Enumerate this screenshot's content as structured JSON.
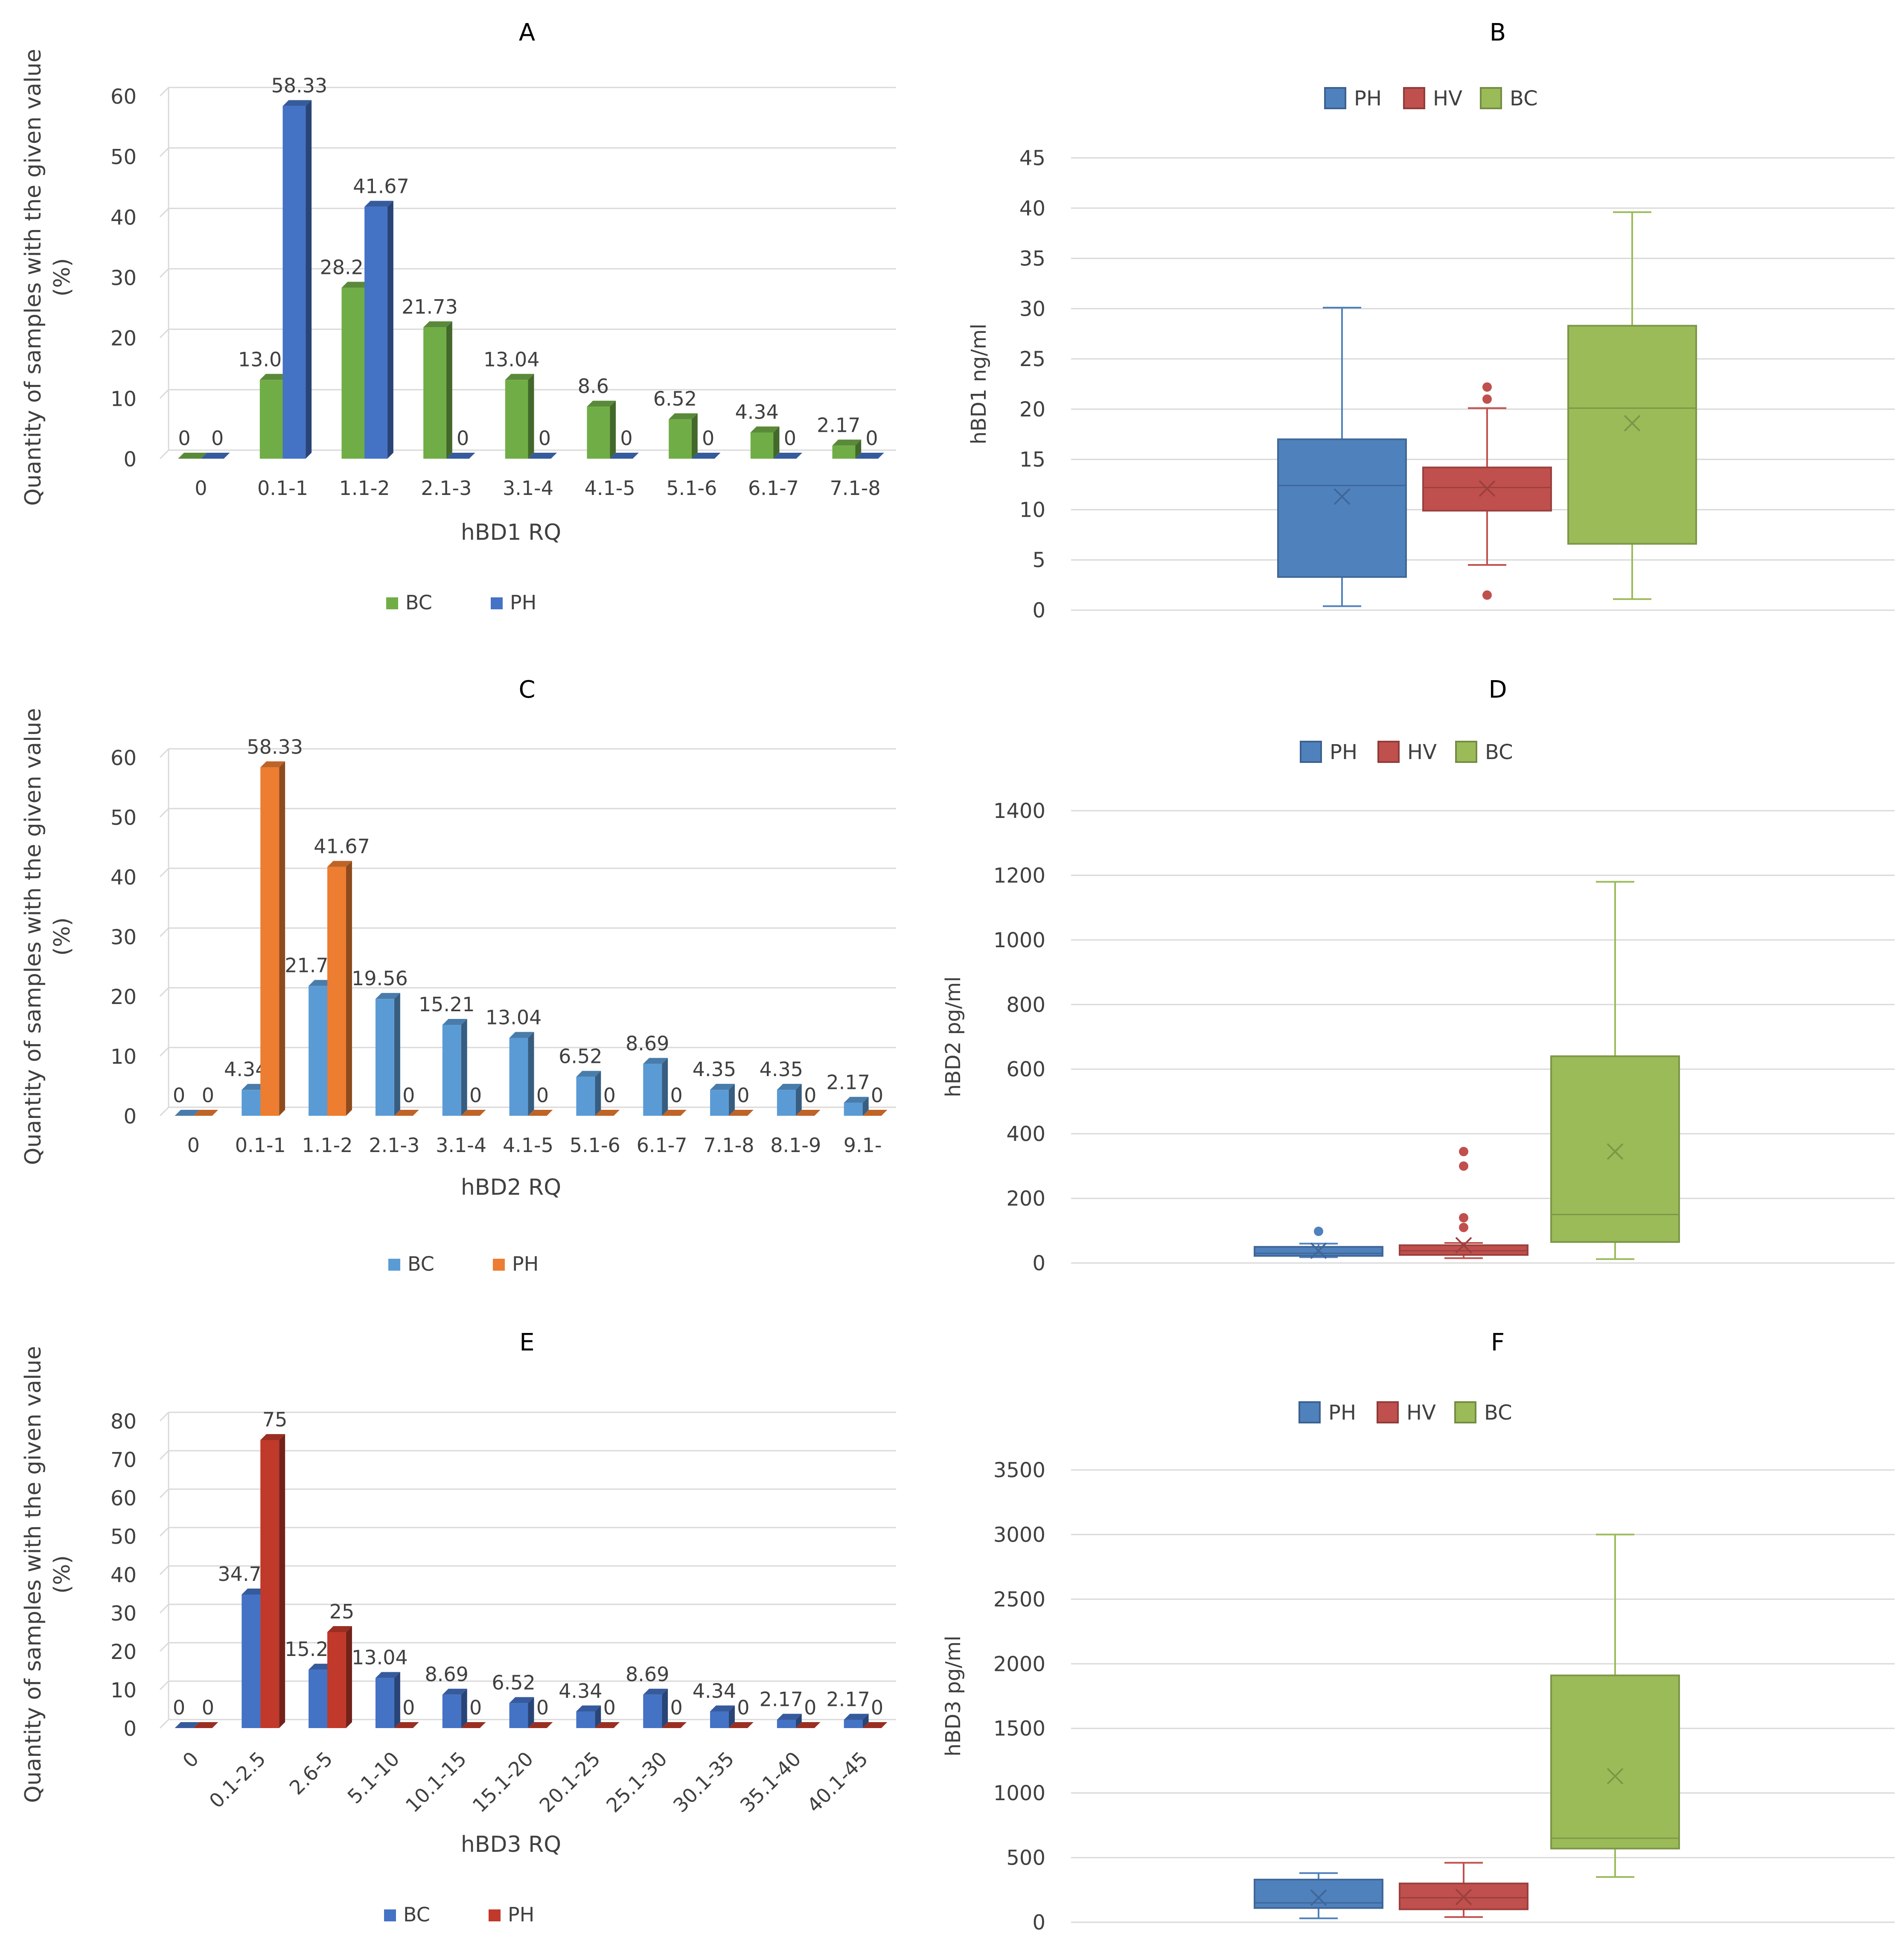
{
  "colors": {
    "bc_green": "#70AD47",
    "ph_blue": "#4472C4",
    "bc_lightblue": "#5B9BD5",
    "ph_orange": "#ED7D31",
    "ph_red": "#C0392B",
    "box_ph": "#4F81BD",
    "box_hv": "#C0504D",
    "box_bc": "#9BBB59",
    "grid": "#D9D9D9",
    "text": "#404040"
  },
  "chart_data": [
    {
      "id": "A",
      "type": "bar",
      "title": "A",
      "xlabel": "hBD1 RQ",
      "ylabel": "Quantity of samples with the given value (%)",
      "ylim": [
        0,
        60
      ],
      "yticks": [
        0,
        10,
        20,
        30,
        40,
        50,
        60
      ],
      "categories": [
        "0",
        "0.1-1",
        "1.1-2",
        "2.1-3",
        "3.1-4",
        "4.1-5",
        "5.1-6",
        "6.1-7",
        "7.1-8"
      ],
      "series": [
        {
          "name": "BC",
          "color": "#70AD47",
          "values": [
            0,
            13.04,
            28.28,
            21.73,
            13.04,
            8.6,
            6.52,
            4.34,
            2.17
          ],
          "labels": [
            "0",
            "13.04",
            "28.28",
            "21.73",
            "13.04",
            "8.6",
            "6.52",
            "4.34",
            "2.17"
          ]
        },
        {
          "name": "PH",
          "color": "#4472C4",
          "values": [
            0,
            58.33,
            41.67,
            0,
            0,
            0,
            0,
            0,
            0
          ],
          "labels": [
            "0",
            "58.33",
            "41.67",
            "0",
            "0",
            "0",
            "0",
            "0",
            "0"
          ]
        }
      ],
      "legend": "bottom",
      "grid": true
    },
    {
      "id": "B",
      "type": "box",
      "title": "B",
      "ylabel": "hBD1 ng/ml",
      "ylim": [
        0,
        45
      ],
      "yticks": [
        0,
        5,
        10,
        15,
        20,
        25,
        30,
        35,
        40,
        45
      ],
      "series": [
        {
          "name": "PH",
          "color": "#4F81BD",
          "min": 0.4,
          "q1": 3.3,
          "median": 12.4,
          "q3": 17.0,
          "max": 30.1,
          "mean": 11.3,
          "outliers": []
        },
        {
          "name": "HV",
          "color": "#C0504D",
          "min": 4.5,
          "q1": 9.9,
          "median": 12.2,
          "q3": 14.2,
          "max": 20.1,
          "mean": 12.1,
          "outliers": [
            1.5,
            21.0,
            22.2
          ]
        },
        {
          "name": "BC",
          "color": "#9BBB59",
          "min": 1.1,
          "q1": 6.6,
          "median": 20.1,
          "q3": 28.3,
          "max": 39.6,
          "mean": 18.6,
          "outliers": []
        }
      ],
      "legend": "top",
      "grid": true
    },
    {
      "id": "C",
      "type": "bar",
      "title": "C",
      "xlabel": "hBD2 RQ",
      "ylabel": "Quantity of samples with the given value (%)",
      "ylim": [
        0,
        60
      ],
      "yticks": [
        0,
        10,
        20,
        30,
        40,
        50,
        60
      ],
      "categories": [
        "0",
        "0.1-1",
        "1.1-2",
        "2.1-3",
        "3.1-4",
        "4.1-5",
        "5.1-6",
        "6.1-7",
        "7.1-8",
        "8.1-9",
        "9.1-"
      ],
      "series": [
        {
          "name": "BC",
          "color": "#5B9BD5",
          "values": [
            0,
            4.34,
            21.74,
            19.56,
            15.21,
            13.04,
            6.52,
            8.69,
            4.35,
            4.35,
            2.17
          ],
          "labels": [
            "0",
            "4.34",
            "21.74",
            "19.56",
            "15.21",
            "13.04",
            "6.52",
            "8.69",
            "4.35",
            "4.35",
            "2.17"
          ]
        },
        {
          "name": "PH",
          "color": "#ED7D31",
          "values": [
            0,
            58.33,
            41.67,
            0,
            0,
            0,
            0,
            0,
            0,
            0,
            0
          ],
          "labels": [
            "0",
            "58.33",
            "41.67",
            "0",
            "0",
            "0",
            "0",
            "0",
            "0",
            "0",
            "0"
          ]
        }
      ],
      "legend": "bottom",
      "grid": true
    },
    {
      "id": "D",
      "type": "box",
      "title": "D",
      "ylabel": "hBD2 pg/ml",
      "ylim": [
        0,
        1400
      ],
      "yticks": [
        0,
        200,
        400,
        600,
        800,
        1000,
        1200,
        1400
      ],
      "series": [
        {
          "name": "PH",
          "color": "#4F81BD",
          "min": 18,
          "q1": 22,
          "median": 30,
          "q3": 50,
          "max": 60,
          "mean": 38,
          "outliers": [
            98
          ]
        },
        {
          "name": "HV",
          "color": "#C0504D",
          "min": 15,
          "q1": 25,
          "median": 38,
          "q3": 55,
          "max": 62,
          "mean": 55,
          "outliers": [
            110,
            140,
            300,
            345
          ]
        },
        {
          "name": "BC",
          "color": "#9BBB59",
          "min": 12,
          "q1": 65,
          "median": 150,
          "q3": 640,
          "max": 1180,
          "mean": 345,
          "outliers": []
        }
      ],
      "legend": "top",
      "grid": true
    },
    {
      "id": "E",
      "type": "bar",
      "title": "E",
      "xlabel": "hBD3 RQ",
      "ylabel": "Quantity of samples with the given value (%)",
      "ylim": [
        0,
        80
      ],
      "yticks": [
        0,
        10,
        20,
        30,
        40,
        50,
        60,
        70,
        80
      ],
      "categories": [
        "0",
        "0.1-2.5",
        "2.6-5",
        "5.1-10",
        "10.1-15",
        "15.1-20",
        "20.1-25",
        "25.1-30",
        "30.1-35",
        "35.1-40",
        "40.1-45"
      ],
      "series": [
        {
          "name": "BC",
          "color": "#4472C4",
          "values": [
            0,
            34.78,
            15.21,
            13.04,
            8.69,
            6.52,
            4.34,
            8.69,
            4.34,
            2.17,
            2.17
          ],
          "labels": [
            "0",
            "34.78",
            "15.21",
            "13.04",
            "8.69",
            "6.52",
            "4.34",
            "8.69",
            "4.34",
            "2.17",
            "2.17"
          ]
        },
        {
          "name": "PH",
          "color": "#C0392B",
          "values": [
            0,
            75,
            25,
            0,
            0,
            0,
            0,
            0,
            0,
            0,
            0
          ],
          "labels": [
            "0",
            "75",
            "25",
            "0",
            "0",
            "0",
            "0",
            "0",
            "0",
            "0",
            "0"
          ]
        }
      ],
      "legend": "bottom",
      "grid": true
    },
    {
      "id": "F",
      "type": "box",
      "title": "F",
      "ylabel": "hBD3 pg/ml",
      "ylim": [
        0,
        3500
      ],
      "yticks": [
        0,
        500,
        1000,
        1500,
        2000,
        2500,
        3000,
        3500
      ],
      "series": [
        {
          "name": "PH",
          "color": "#4F81BD",
          "min": 30,
          "q1": 110,
          "median": 150,
          "q3": 330,
          "max": 380,
          "mean": 190,
          "outliers": []
        },
        {
          "name": "HV",
          "color": "#C0504D",
          "min": 40,
          "q1": 100,
          "median": 190,
          "q3": 300,
          "max": 460,
          "mean": 195,
          "outliers": []
        },
        {
          "name": "BC",
          "color": "#9BBB59",
          "min": 350,
          "q1": 570,
          "median": 650,
          "q3": 1910,
          "max": 3000,
          "mean": 1130,
          "outliers": []
        }
      ],
      "legend": "top",
      "grid": true
    }
  ]
}
